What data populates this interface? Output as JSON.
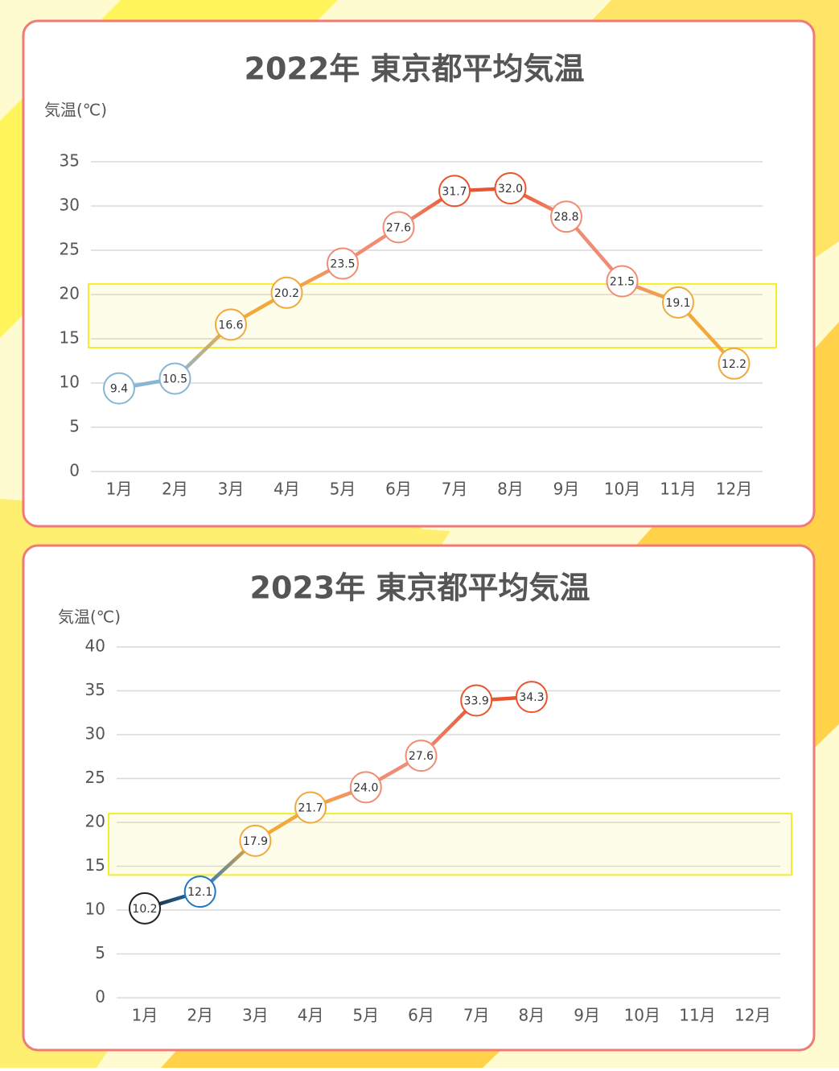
{
  "chart_data": [
    {
      "type": "line",
      "title": "2022年  東京都平均気温",
      "y_label": "気温(℃)",
      "categories": [
        "1月",
        "2月",
        "3月",
        "4月",
        "5月",
        "6月",
        "7月",
        "8月",
        "9月",
        "10月",
        "11月",
        "12月"
      ],
      "values": [
        9.4,
        10.5,
        16.6,
        20.2,
        23.5,
        27.6,
        31.7,
        32.0,
        28.8,
        21.5,
        19.1,
        12.2
      ],
      "value_labels": [
        "9.4",
        "10.5",
        "16.6",
        "20.2",
        "23.5",
        "27.6",
        "31.7",
        "32.0",
        "28.8",
        "21.5",
        "19.1",
        "12.2"
      ],
      "point_colors": [
        "#86b6d4",
        "#86b6d4",
        "#f2a93b",
        "#f2a93b",
        "#f08c74",
        "#f08c74",
        "#e8552f",
        "#e8552f",
        "#f08c74",
        "#f08c74",
        "#f2a93b",
        "#f2a93b"
      ],
      "highlight_range": [
        14,
        21.2
      ],
      "highlight_color": "#f5ec2a",
      "ylim": [
        0,
        35
      ],
      "yticks": [
        0,
        5,
        10,
        15,
        20,
        25,
        30,
        35
      ],
      "grid": true
    },
    {
      "type": "line",
      "title": "2023年  東京都平均気温",
      "y_label": "気温(℃)",
      "categories": [
        "1月",
        "2月",
        "3月",
        "4月",
        "5月",
        "6月",
        "7月",
        "8月",
        "9月",
        "10月",
        "11月",
        "12月"
      ],
      "values": [
        10.2,
        12.1,
        17.9,
        21.7,
        24.0,
        27.6,
        33.9,
        34.3,
        null,
        null,
        null,
        null
      ],
      "value_labels": [
        "10.2",
        "12.1",
        "17.9",
        "21.7",
        "24.0",
        "27.6",
        "33.9",
        "34.3",
        null,
        null,
        null,
        null
      ],
      "point_colors": [
        "#222222",
        "#1f78c4",
        "#f2a93b",
        "#f2a93b",
        "#f08c74",
        "#f08c74",
        "#e8552f",
        "#e8552f",
        null,
        null,
        null,
        null
      ],
      "highlight_range": [
        14,
        21
      ],
      "highlight_color": "#f5ec2a",
      "ylim": [
        0,
        40
      ],
      "yticks": [
        0,
        5,
        10,
        15,
        20,
        25,
        30,
        35,
        40
      ],
      "grid": true
    }
  ]
}
